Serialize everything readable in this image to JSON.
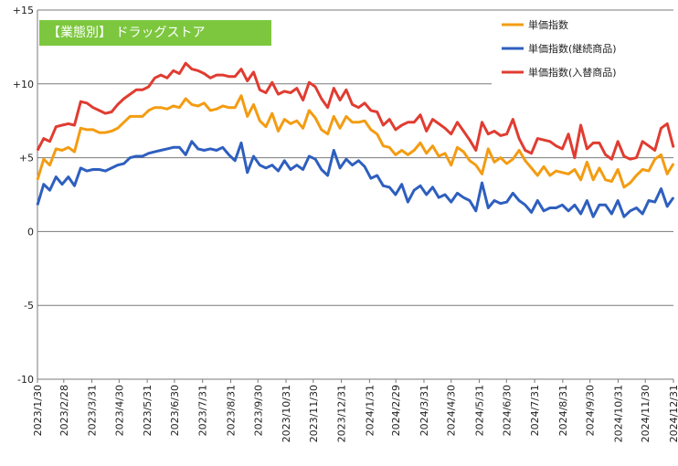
{
  "chart_data": {
    "type": "line",
    "title": "【業態別】 ドラッグストア",
    "title_bg_color": "#7dc73f",
    "xlabel": "",
    "ylabel": "",
    "ylim": [
      -10,
      15
    ],
    "yticks": [
      15,
      10,
      5,
      0,
      -5,
      -10
    ],
    "ytick_labels": [
      "+15",
      "+10",
      "+5",
      "0",
      "-5",
      "-10"
    ],
    "grid": "horizontal",
    "legend_position": "top-right",
    "x_start": "2023-01-30",
    "x_end": "2024-12-31",
    "x_tick_labels": [
      "2023/1/30",
      "2023/2/28",
      "2023/3/31",
      "2023/4/30",
      "2023/5/31",
      "2023/6/30",
      "2023/7/31",
      "2023/8/31",
      "2023/9/30",
      "2023/10/31",
      "2023/11/30",
      "2023/12/31",
      "2024/1/31",
      "2024/2/29",
      "2024/3/31",
      "2024/4/30",
      "2024/5/31",
      "2024/6/30",
      "2024/7/31",
      "2024/8/31",
      "2024/9/30",
      "2024/10/31",
      "2024/11/30",
      "2024/12/31"
    ],
    "series": [
      {
        "name": "単価指数",
        "color": "#f39c12",
        "values": [
          3.5,
          4.9,
          4.5,
          5.6,
          5.5,
          5.7,
          5.4,
          7.0,
          6.9,
          6.9,
          6.7,
          6.7,
          6.8,
          7.0,
          7.4,
          7.8,
          7.8,
          7.8,
          8.2,
          8.4,
          8.4,
          8.3,
          8.5,
          8.4,
          9.0,
          8.6,
          8.5,
          8.7,
          8.2,
          8.3,
          8.5,
          8.4,
          8.4,
          9.2,
          7.8,
          8.6,
          7.5,
          7.1,
          8.0,
          6.8,
          7.6,
          7.3,
          7.5,
          7.0,
          8.2,
          7.7,
          6.9,
          6.6,
          7.8,
          7.0,
          7.8,
          7.4,
          7.4,
          7.5,
          6.9,
          6.6,
          5.8,
          5.7,
          5.2,
          5.5,
          5.2,
          5.5,
          6.0,
          5.3,
          5.8,
          5.1,
          5.3,
          4.5,
          5.7,
          5.4,
          4.8,
          4.5,
          3.9,
          5.6,
          4.7,
          5.0,
          4.6,
          4.9,
          5.5,
          4.8,
          4.3,
          3.8,
          4.4,
          3.8,
          4.1,
          4.0,
          3.9,
          4.2,
          3.5,
          4.7,
          3.5,
          4.3,
          3.5,
          3.4,
          4.2,
          3.0,
          3.3,
          3.8,
          4.2,
          4.1,
          4.9,
          5.2,
          3.9,
          4.6
        ]
      },
      {
        "name": "単価指数(継続商品)",
        "color": "#2e5fbf",
        "values": [
          1.8,
          3.2,
          2.8,
          3.7,
          3.2,
          3.7,
          3.1,
          4.3,
          4.1,
          4.2,
          4.2,
          4.1,
          4.3,
          4.5,
          4.6,
          5.0,
          5.1,
          5.1,
          5.3,
          5.4,
          5.5,
          5.6,
          5.7,
          5.7,
          5.2,
          6.1,
          5.6,
          5.5,
          5.6,
          5.5,
          5.7,
          5.2,
          4.8,
          6.0,
          4.0,
          5.1,
          4.5,
          4.3,
          4.5,
          4.1,
          4.8,
          4.2,
          4.5,
          4.2,
          5.1,
          4.9,
          4.2,
          3.8,
          5.5,
          4.3,
          4.9,
          4.5,
          4.8,
          4.4,
          3.6,
          3.8,
          3.1,
          3.0,
          2.5,
          3.2,
          2.0,
          2.8,
          3.1,
          2.5,
          3.0,
          2.3,
          2.5,
          2.0,
          2.6,
          2.3,
          2.1,
          1.4,
          3.3,
          1.6,
          2.1,
          1.9,
          2.0,
          2.6,
          2.1,
          1.8,
          1.3,
          2.1,
          1.4,
          1.6,
          1.6,
          1.8,
          1.4,
          1.8,
          1.2,
          2.1,
          1.0,
          1.8,
          1.8,
          1.2,
          2.1,
          1.0,
          1.4,
          1.6,
          1.2,
          2.1,
          2.0,
          2.9,
          1.7,
          2.3
        ]
      },
      {
        "name": "単価指数(入替商品)",
        "color": "#e03c31",
        "values": [
          5.5,
          6.3,
          6.1,
          7.1,
          7.2,
          7.3,
          7.2,
          8.8,
          8.7,
          8.4,
          8.2,
          8.0,
          8.1,
          8.6,
          9.0,
          9.3,
          9.6,
          9.6,
          9.8,
          10.4,
          10.6,
          10.4,
          10.9,
          10.7,
          11.4,
          11.0,
          10.9,
          10.7,
          10.4,
          10.6,
          10.6,
          10.5,
          10.5,
          11.0,
          10.2,
          10.8,
          9.6,
          9.4,
          10.1,
          9.3,
          9.5,
          9.4,
          9.7,
          8.9,
          10.1,
          9.8,
          9.0,
          8.4,
          9.7,
          8.9,
          9.6,
          8.6,
          8.4,
          8.7,
          8.2,
          8.1,
          7.2,
          7.6,
          6.9,
          7.2,
          7.4,
          7.4,
          7.9,
          6.8,
          7.6,
          7.3,
          7.0,
          6.6,
          7.4,
          6.8,
          6.2,
          5.5,
          7.4,
          6.6,
          6.8,
          6.5,
          6.6,
          7.6,
          6.3,
          5.5,
          5.3,
          6.3,
          6.2,
          6.1,
          5.8,
          5.6,
          6.6,
          5.0,
          7.2,
          5.6,
          6.0,
          6.0,
          5.2,
          4.9,
          6.1,
          5.1,
          4.9,
          5.0,
          6.1,
          5.8,
          5.5,
          7.0,
          7.3,
          5.7
        ]
      }
    ]
  }
}
